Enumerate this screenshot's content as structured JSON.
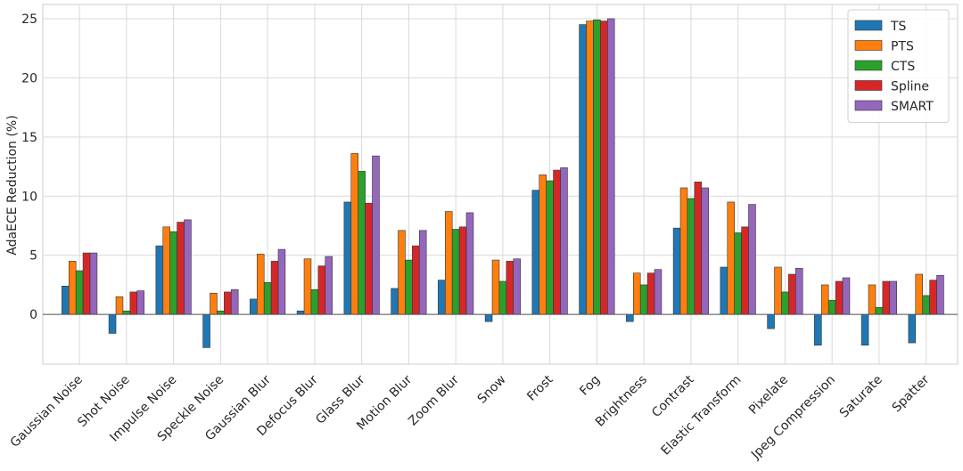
{
  "chart_data": {
    "type": "bar",
    "title": "",
    "xlabel": "",
    "ylabel": "AdaECE Reduction (%)",
    "ylim": [
      -4.2,
      26.2
    ],
    "yticks": [
      0,
      5,
      10,
      15,
      20,
      25
    ],
    "grid": true,
    "legend_position": "top-right",
    "categories": [
      "Gaussian Noise",
      "Shot Noise",
      "Impulse Noise",
      "Speckle Noise",
      "Gaussian Blur",
      "Defocus Blur",
      "Glass Blur",
      "Motion Blur",
      "Zoom Blur",
      "Snow",
      "Frost",
      "Fog",
      "Brightness",
      "Contrast",
      "Elastic Transform",
      "Pixelate",
      "Jpeg Compression",
      "Saturate",
      "Spatter"
    ],
    "series": [
      {
        "name": "TS",
        "color": "#1f77b4",
        "values": [
          2.4,
          -1.6,
          5.8,
          -2.8,
          1.3,
          0.3,
          9.5,
          2.2,
          2.9,
          -0.6,
          10.5,
          24.5,
          -0.6,
          7.3,
          4.0,
          -1.2,
          -2.6,
          -2.6,
          -2.4
        ]
      },
      {
        "name": "PTS",
        "color": "#ff7f0e",
        "values": [
          4.5,
          1.5,
          7.4,
          1.8,
          5.1,
          4.7,
          13.6,
          7.1,
          8.7,
          4.6,
          11.8,
          24.8,
          3.5,
          10.7,
          9.5,
          4.0,
          2.5,
          2.5,
          3.4
        ]
      },
      {
        "name": "CTS",
        "color": "#2ca02c",
        "values": [
          3.7,
          0.3,
          7.0,
          0.3,
          2.7,
          2.1,
          12.1,
          4.6,
          7.2,
          2.8,
          11.3,
          24.9,
          2.5,
          9.8,
          6.9,
          1.9,
          1.2,
          0.6,
          1.6
        ]
      },
      {
        "name": "Spline",
        "color": "#d62728",
        "values": [
          5.2,
          1.9,
          7.8,
          1.9,
          4.5,
          4.1,
          9.4,
          5.8,
          7.4,
          4.5,
          12.2,
          24.8,
          3.5,
          11.2,
          7.4,
          3.4,
          2.8,
          2.8,
          2.9
        ]
      },
      {
        "name": "SMART",
        "color": "#9467bd",
        "values": [
          5.2,
          2.0,
          8.0,
          2.1,
          5.5,
          4.9,
          13.4,
          7.1,
          8.6,
          4.7,
          12.4,
          25.0,
          3.8,
          10.7,
          9.3,
          3.9,
          3.1,
          2.8,
          3.3
        ]
      }
    ]
  }
}
